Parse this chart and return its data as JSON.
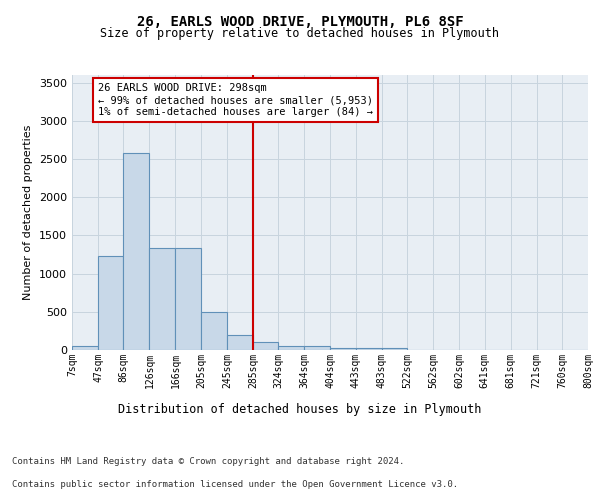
{
  "title": "26, EARLS WOOD DRIVE, PLYMOUTH, PL6 8SF",
  "subtitle": "Size of property relative to detached houses in Plymouth",
  "xlabel": "Distribution of detached houses by size in Plymouth",
  "ylabel": "Number of detached properties",
  "bar_edges": [
    7,
    47,
    86,
    126,
    166,
    205,
    245,
    285,
    324,
    364,
    404,
    443,
    483,
    522,
    562,
    602,
    641,
    681,
    721,
    760,
    800
  ],
  "bar_heights": [
    50,
    1230,
    2580,
    1340,
    1340,
    500,
    200,
    100,
    50,
    50,
    30,
    30,
    30,
    0,
    0,
    0,
    0,
    0,
    0,
    0
  ],
  "bar_color": "#c8d8e8",
  "bar_edgecolor": "#6090b8",
  "bar_linewidth": 0.8,
  "vline_x": 285,
  "vline_color": "#cc0000",
  "vline_linewidth": 1.5,
  "ylim": [
    0,
    3600
  ],
  "yticks": [
    0,
    500,
    1000,
    1500,
    2000,
    2500,
    3000,
    3500
  ],
  "grid_color": "#c8d4de",
  "background_color": "#e8eef4",
  "annotation_text": "26 EARLS WOOD DRIVE: 298sqm\n← 99% of detached houses are smaller (5,953)\n1% of semi-detached houses are larger (84) →",
  "annotation_box_color": "#cc0000",
  "footer_line1": "Contains HM Land Registry data © Crown copyright and database right 2024.",
  "footer_line2": "Contains public sector information licensed under the Open Government Licence v3.0.",
  "x_tick_labels": [
    "7sqm",
    "47sqm",
    "86sqm",
    "126sqm",
    "166sqm",
    "205sqm",
    "245sqm",
    "285sqm",
    "324sqm",
    "364sqm",
    "404sqm",
    "443sqm",
    "483sqm",
    "522sqm",
    "562sqm",
    "602sqm",
    "641sqm",
    "681sqm",
    "721sqm",
    "760sqm",
    "800sqm"
  ]
}
